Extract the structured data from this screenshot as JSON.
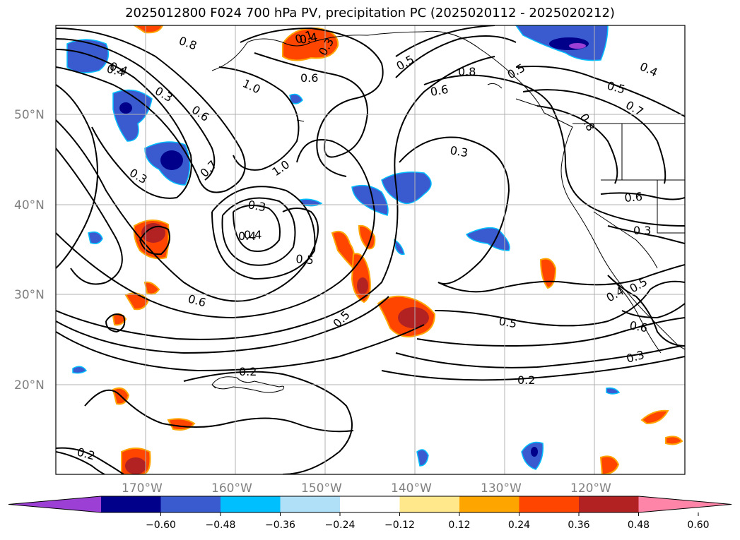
{
  "title": "2025012800 F024 700 hPa PV, precipitation PC (2025020112 - 2025020212)",
  "map": {
    "lat_labels": [
      "50°N",
      "40°N",
      "30°N",
      "20°N"
    ],
    "lon_labels": [
      "170°W",
      "160°W",
      "150°W",
      "140°W",
      "130°W",
      "120°W"
    ]
  },
  "contour_labels": [
    "0.8",
    "0.4",
    "0.3",
    "0.6",
    "0.5",
    "1.0",
    "0.7",
    "0.3",
    "0.1",
    "1.0",
    "0.4",
    "0.3",
    "0.3",
    "0.6",
    "0.4",
    "0.5",
    "0.2",
    "0.2",
    "0.8",
    "0.5",
    "0.6",
    "0.5",
    "0.3",
    "0.4",
    "0.5",
    "0.7",
    "0.6",
    "0.3",
    "0.5",
    "0.4",
    "0.5",
    "0.6",
    "0.3",
    "0.2",
    "0.4",
    "0.4",
    "0.8",
    "0.6"
  ],
  "colorbar": {
    "ticks": [
      "−0.60",
      "−0.48",
      "−0.36",
      "−0.24",
      "−0.12",
      "0.12",
      "0.24",
      "0.36",
      "0.48",
      "0.60"
    ],
    "colors": [
      "#9b3fd5",
      "#00008b",
      "#3a5bd0",
      "#00bfff",
      "#b0e0f8",
      "#ffffff",
      "#ffe88c",
      "#ffa500",
      "#ff4500",
      "#b22222",
      "#ff85a8"
    ]
  }
}
